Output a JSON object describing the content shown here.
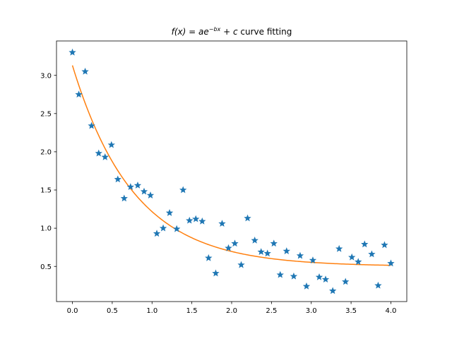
{
  "chart_data": {
    "type": "scatter",
    "title": "f(x) = ae^{-bx} + c curve fitting",
    "title_parts": {
      "fx": "f(x)",
      "eq": " = ",
      "a": "a",
      "e": "e",
      "exp": "−bx",
      "plus": " + ",
      "c": "c",
      "rest": " curve fitting"
    },
    "xlabel": "",
    "ylabel": "",
    "xlim": [
      -0.2,
      4.2
    ],
    "ylim": [
      0.04,
      3.45
    ],
    "xticks": [
      0.0,
      0.5,
      1.0,
      1.5,
      2.0,
      2.5,
      3.0,
      3.5,
      4.0
    ],
    "xtick_labels": [
      "0.0",
      "0.5",
      "1.0",
      "1.5",
      "2.0",
      "2.5",
      "3.0",
      "3.5",
      "4.0"
    ],
    "yticks": [
      0.5,
      1.0,
      1.5,
      2.0,
      2.5,
      3.0
    ],
    "ytick_labels": [
      "0.5",
      "1.0",
      "1.5",
      "2.0",
      "2.5",
      "3.0"
    ],
    "grid": false,
    "series": [
      {
        "kind": "scatter",
        "marker": "star",
        "color": "#1f77b4",
        "x": [
          0.0,
          0.08,
          0.16,
          0.24,
          0.33,
          0.41,
          0.49,
          0.57,
          0.65,
          0.73,
          0.82,
          0.9,
          0.98,
          1.06,
          1.14,
          1.22,
          1.31,
          1.39,
          1.47,
          1.55,
          1.63,
          1.71,
          1.8,
          1.88,
          1.96,
          2.04,
          2.12,
          2.2,
          2.29,
          2.37,
          2.45,
          2.53,
          2.61,
          2.69,
          2.78,
          2.86,
          2.94,
          3.02,
          3.1,
          3.18,
          3.27,
          3.35,
          3.43,
          3.51,
          3.59,
          3.67,
          3.76,
          3.84,
          3.92,
          4.0
        ],
        "y": [
          3.3,
          2.75,
          3.05,
          2.34,
          1.98,
          1.93,
          2.09,
          1.64,
          1.39,
          1.54,
          1.56,
          1.48,
          1.43,
          0.93,
          1.0,
          1.2,
          0.99,
          1.5,
          1.1,
          1.12,
          1.09,
          0.61,
          0.41,
          1.06,
          0.74,
          0.8,
          0.52,
          1.13,
          0.84,
          0.69,
          0.67,
          0.8,
          0.39,
          0.7,
          0.37,
          0.64,
          0.24,
          0.58,
          0.36,
          0.33,
          0.18,
          0.73,
          0.3,
          0.62,
          0.56,
          0.79,
          0.66,
          0.25,
          0.78,
          0.54
        ]
      },
      {
        "kind": "line",
        "color": "#ff7f0e",
        "fit": {
          "a": 2.63,
          "b": 1.3,
          "c": 0.5
        },
        "x_range": [
          0.0,
          4.0
        ]
      }
    ]
  }
}
